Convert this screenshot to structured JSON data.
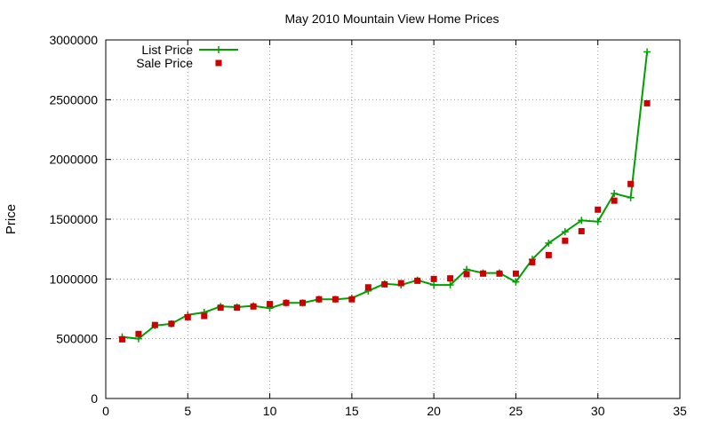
{
  "chart_data": {
    "type": "line",
    "title": "May 2010 Mountain View Home Prices",
    "xlabel": "",
    "ylabel": "Price",
    "xlim": [
      0,
      35
    ],
    "ylim": [
      0,
      3000000
    ],
    "x_ticks": [
      0,
      5,
      10,
      15,
      20,
      25,
      30,
      35
    ],
    "y_ticks": [
      0,
      500000,
      1000000,
      1500000,
      2000000,
      2500000,
      3000000
    ],
    "grid": true,
    "legend_position": "top-left",
    "x": [
      1,
      2,
      3,
      4,
      5,
      6,
      7,
      8,
      9,
      10,
      11,
      12,
      13,
      14,
      15,
      16,
      17,
      18,
      19,
      20,
      21,
      22,
      23,
      24,
      25,
      26,
      27,
      28,
      29,
      30,
      31,
      32,
      33
    ],
    "series": [
      {
        "name": "List Price",
        "style": "line with plus markers",
        "color": "#00a000",
        "values": [
          515000,
          500000,
          610000,
          625000,
          700000,
          720000,
          770000,
          765000,
          775000,
          755000,
          800000,
          800000,
          830000,
          830000,
          840000,
          900000,
          960000,
          950000,
          990000,
          950000,
          950000,
          1080000,
          1050000,
          1050000,
          975000,
          1165000,
          1300000,
          1395000,
          1490000,
          1480000,
          1715000,
          1680000,
          2900000
        ]
      },
      {
        "name": "Sale Price",
        "style": "square markers",
        "color": "#cc0000",
        "values": [
          495000,
          540000,
          615000,
          625000,
          680000,
          690000,
          760000,
          760000,
          770000,
          790000,
          800000,
          800000,
          830000,
          830000,
          830000,
          930000,
          955000,
          965000,
          985000,
          1000000,
          1005000,
          1040000,
          1045000,
          1045000,
          1045000,
          1140000,
          1200000,
          1320000,
          1400000,
          1580000,
          1655000,
          1795000,
          2470000
        ]
      }
    ]
  }
}
